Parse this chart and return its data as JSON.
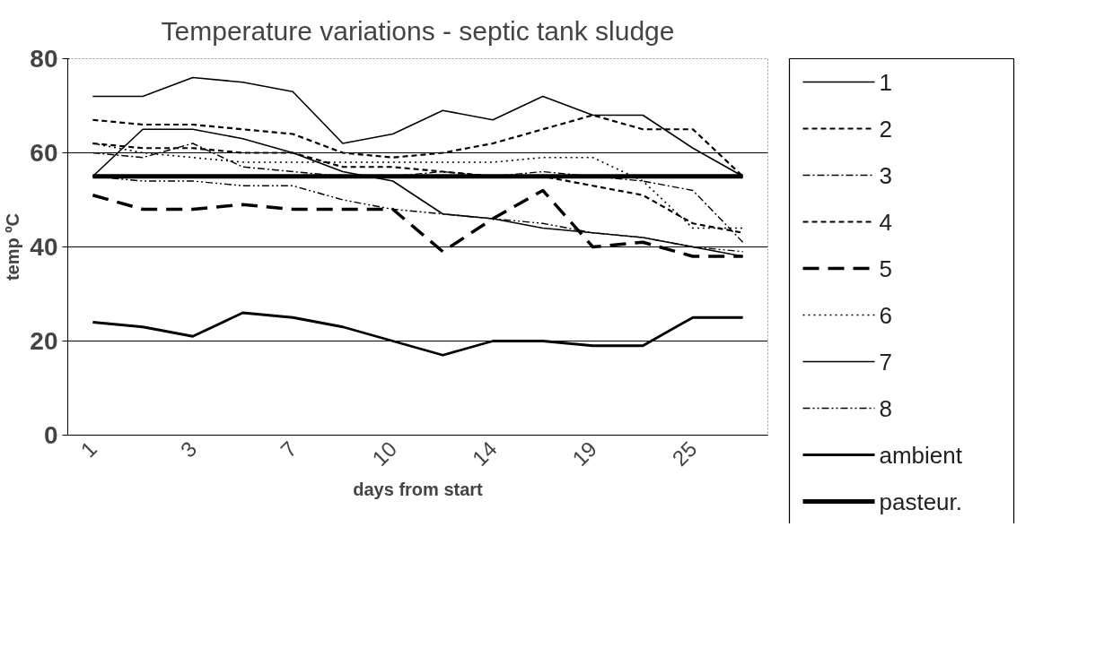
{
  "chart_data": {
    "type": "line",
    "title": "Temperature variations - septic tank sludge",
    "xlabel": "days from start",
    "ylabel": "temp ºC",
    "categories": [
      "1",
      null,
      "3",
      null,
      "7",
      null,
      "10",
      null,
      "14",
      null,
      "19",
      null,
      "25",
      null
    ],
    "ylim": [
      0,
      80
    ],
    "yticks": [
      0,
      20,
      40,
      60,
      80
    ],
    "grid": "y",
    "legend": "right",
    "marker": "none",
    "series": [
      {
        "name": "1",
        "color": "#000000",
        "line_style": "solid",
        "values": [
          72,
          72,
          76,
          75,
          73,
          62,
          64,
          69,
          67,
          72,
          68,
          68,
          61,
          55
        ]
      },
      {
        "name": "2",
        "color": "#000000",
        "line_style": "dashed",
        "values": [
          62,
          61,
          61,
          60,
          60,
          57,
          57,
          56,
          55,
          55,
          53,
          51,
          45,
          43
        ]
      },
      {
        "name": "3",
        "color": "#000000",
        "line_style": "dashdot",
        "values": [
          60,
          59,
          62,
          57,
          56,
          55,
          55,
          56,
          55,
          56,
          55,
          54,
          52,
          41
        ]
      },
      {
        "name": "4",
        "color": "#000000",
        "line_style": "dashed",
        "values": [
          67,
          66,
          66,
          65,
          64,
          60,
          59,
          60,
          62,
          65,
          68,
          65,
          65,
          55
        ]
      },
      {
        "name": "5",
        "color": "#000000",
        "line_style": "longdash",
        "values": [
          51,
          48,
          48,
          49,
          48,
          48,
          48,
          39,
          46,
          52,
          40,
          41,
          38,
          38
        ]
      },
      {
        "name": "6",
        "color": "#000000",
        "line_style": "dotted",
        "values": [
          62,
          60,
          59,
          58,
          58,
          58,
          58,
          58,
          58,
          59,
          59,
          54,
          44,
          44
        ]
      },
      {
        "name": "7",
        "color": "#000000",
        "line_style": "solid",
        "values": [
          55,
          65,
          65,
          63,
          60,
          56,
          54,
          47,
          46,
          44,
          43,
          42,
          40,
          38
        ]
      },
      {
        "name": "8",
        "color": "#000000",
        "line_style": "dashdotdot",
        "values": [
          55,
          54,
          54,
          53,
          53,
          50,
          48,
          47,
          46,
          45,
          43,
          42,
          40,
          39
        ]
      },
      {
        "name": "ambient",
        "color": "#000000",
        "line_style": "solid",
        "values": [
          24,
          23,
          21,
          26,
          25,
          23,
          20,
          17,
          20,
          20,
          19,
          19,
          25,
          25
        ]
      },
      {
        "name": "pasteur.",
        "color": "#000000",
        "line_style": "solid",
        "values": [
          55,
          55,
          55,
          55,
          55,
          55,
          55,
          55,
          55,
          55,
          55,
          55,
          55,
          55
        ]
      }
    ]
  }
}
